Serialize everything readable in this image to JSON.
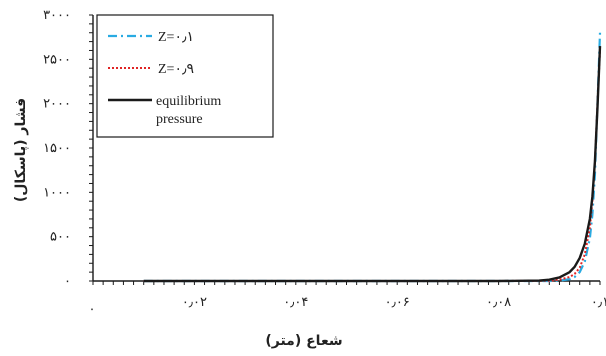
{
  "chart_data": {
    "type": "line",
    "xlabel": "شعاع (متر)",
    "ylabel": "فشار (پاسکال)",
    "xlim": [
      0,
      0.1
    ],
    "ylim": [
      0,
      3000
    ],
    "x_ticks": [
      {
        "value": 0,
        "label": "۰"
      },
      {
        "value": 0.02,
        "label": "۰٫۰۲"
      },
      {
        "value": 0.04,
        "label": "۰٫۰۴"
      },
      {
        "value": 0.06,
        "label": "۰٫۰۶"
      },
      {
        "value": 0.08,
        "label": "۰٫۰۸"
      },
      {
        "value": 0.1,
        "label": "۰٫۱"
      }
    ],
    "y_ticks": [
      {
        "value": 0,
        "label": "۰"
      },
      {
        "value": 500,
        "label": "۵۰۰"
      },
      {
        "value": 1000,
        "label": "۱۰۰۰"
      },
      {
        "value": 1500,
        "label": "۱۵۰۰"
      },
      {
        "value": 2000,
        "label": "۲۰۰۰"
      },
      {
        "value": 2500,
        "label": "۲۵۰۰"
      },
      {
        "value": 3000,
        "label": "۳۰۰۰"
      }
    ],
    "grid": false,
    "legend_position": "top-left",
    "series": [
      {
        "name": "Z=۰٫۱",
        "color": "#29abe2",
        "dash": "dashdot",
        "x": [
          0.01,
          0.02,
          0.04,
          0.06,
          0.08,
          0.09,
          0.092,
          0.094,
          0.095,
          0.096,
          0.097,
          0.098,
          0.0985,
          0.099,
          0.0995,
          0.1
        ],
        "y": [
          0,
          0,
          0,
          0,
          0,
          0,
          5,
          20,
          45,
          100,
          220,
          480,
          750,
          1200,
          2000,
          2800
        ]
      },
      {
        "name": "Z=۰٫۹",
        "color": "#e02424",
        "dash": "dotted",
        "x": [
          0.01,
          0.02,
          0.04,
          0.06,
          0.08,
          0.09,
          0.092,
          0.094,
          0.095,
          0.096,
          0.097,
          0.098,
          0.0985,
          0.099,
          0.0995,
          0.1
        ],
        "y": [
          0,
          0,
          0,
          0,
          0,
          3,
          15,
          45,
          80,
          150,
          300,
          600,
          900,
          1350,
          2000,
          2600
        ]
      },
      {
        "name": "equilibrium pressure",
        "color": "#1a1a1a",
        "dash": "solid",
        "x": [
          0.01,
          0.02,
          0.04,
          0.06,
          0.08,
          0.088,
          0.09,
          0.092,
          0.094,
          0.095,
          0.096,
          0.097,
          0.098,
          0.0985,
          0.099,
          0.0995,
          0.1
        ],
        "y": [
          0,
          0,
          0,
          0,
          0,
          5,
          15,
          40,
          100,
          160,
          260,
          420,
          700,
          950,
          1350,
          1950,
          2650
        ]
      }
    ]
  }
}
